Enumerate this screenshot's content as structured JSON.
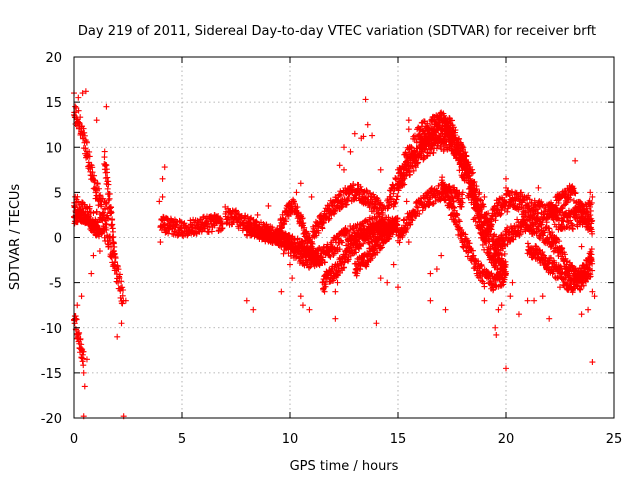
{
  "chart_data": {
    "type": "scatter",
    "title": "Day 219 of 2011, Sidereal Day-to-day VTEC variation (SDTVAR) for receiver brft",
    "xlabel": "GPS time / hours",
    "ylabel": "SDTVAR / TECUs",
    "xlim": [
      0,
      25
    ],
    "ylim": [
      -20,
      20
    ],
    "x_ticks": [
      0,
      5,
      10,
      15,
      20,
      25
    ],
    "y_ticks": [
      -20,
      -15,
      -10,
      -5,
      0,
      5,
      10,
      15,
      20
    ],
    "x_tick_labels": [
      "0",
      "5",
      "10",
      "15",
      "20",
      "25"
    ],
    "y_tick_labels": [
      "-20",
      "-15",
      "-10",
      "-5",
      "0",
      "5",
      "10",
      "15",
      "20"
    ],
    "grid": true,
    "marker": "+",
    "color": "#ff0000",
    "series": [
      {
        "name": "SDTVAR",
        "traces": [
          {
            "x": [
              0.0,
              0.2,
              0.4,
              0.6,
              0.8,
              1.0,
              1.2,
              1.4,
              1.6
            ],
            "y": [
              13.5,
              13.0,
              11.5,
              9.5,
              7.5,
              5.5,
              4.0,
              3.0,
              2.5
            ],
            "spread": 1.2
          },
          {
            "x": [
              0.0,
              0.3,
              0.6,
              0.9,
              1.2,
              1.5,
              1.7,
              1.9,
              2.1,
              2.3
            ],
            "y": [
              4.0,
              3.0,
              2.5,
              2.0,
              1.5,
              0.5,
              -1.0,
              -3.0,
              -5.0,
              -7.0
            ],
            "spread": 1.2
          },
          {
            "x": [
              0.0,
              0.15,
              0.3,
              0.45
            ],
            "y": [
              -8.5,
              -10.5,
              -12.0,
              -13.5
            ],
            "spread": 1.0
          },
          {
            "x": [
              1.4,
              1.55,
              1.7,
              1.8,
              1.9
            ],
            "y": [
              9.0,
              6.0,
              3.0,
              0.0,
              -3.0
            ],
            "spread": 1.0
          },
          {
            "x": [
              0.0,
              0.3,
              0.6,
              0.9,
              1.2
            ],
            "y": [
              2.0,
              2.5,
              2.0,
              1.0,
              0.5
            ],
            "spread": 0.6
          },
          {
            "x": [
              4.0,
              4.5,
              5.0,
              5.5,
              6.0,
              6.5,
              6.9
            ],
            "y": [
              1.5,
              1.2,
              1.0,
              1.2,
              1.4,
              1.6,
              1.6
            ],
            "spread": 0.9
          },
          {
            "x": [
              7.0,
              7.5,
              8.0,
              8.5,
              9.0,
              9.5,
              10.0
            ],
            "y": [
              2.5,
              2.0,
              1.5,
              1.0,
              0.5,
              0.0,
              -1.0
            ],
            "spread": 0.9
          },
          {
            "x": [
              8.0,
              8.5,
              9.0,
              9.5,
              10.0,
              10.5,
              11.0
            ],
            "y": [
              1.0,
              0.5,
              0.3,
              0.0,
              -0.5,
              -1.0,
              -1.5
            ],
            "spread": 0.8
          },
          {
            "x": [
              9.5,
              9.9,
              10.2,
              10.5,
              10.8,
              11.1,
              11.4
            ],
            "y": [
              1.0,
              3.0,
              3.5,
              2.0,
              0.0,
              -2.0,
              -3.0
            ],
            "spread": 0.8
          },
          {
            "x": [
              10.0,
              10.5,
              11.0,
              11.5,
              12.0,
              12.5,
              13.0,
              13.5,
              14.0,
              14.4
            ],
            "y": [
              -1.0,
              -2.0,
              -2.5,
              -2.0,
              -1.0,
              0.0,
              0.5,
              1.0,
              1.5,
              1.5
            ],
            "spread": 1.0
          },
          {
            "x": [
              11.0,
              11.5,
              12.0,
              12.5,
              13.0,
              13.5,
              14.0,
              14.5
            ],
            "y": [
              0.0,
              2.0,
              3.5,
              4.5,
              5.0,
              4.5,
              3.5,
              2.0
            ],
            "spread": 1.0
          },
          {
            "x": [
              11.5,
              12.0,
              12.5,
              13.0,
              13.5,
              14.0,
              14.5,
              15.0
            ],
            "y": [
              -5.0,
              -4.0,
              -2.5,
              -1.0,
              0.0,
              0.5,
              1.0,
              1.5
            ],
            "spread": 0.9
          },
          {
            "x": [
              13.0,
              13.5,
              14.0,
              14.5,
              15.0
            ],
            "y": [
              -3.5,
              -2.5,
              -1.0,
              0.5,
              2.0
            ],
            "spread": 0.9
          },
          {
            "x": [
              14.5,
              15.0,
              15.5,
              16.0,
              16.5,
              17.0,
              17.5,
              18.0,
              18.5,
              19.0
            ],
            "y": [
              3.0,
              6.0,
              9.0,
              11.0,
              12.0,
              12.0,
              11.0,
              8.0,
              4.0,
              0.0
            ],
            "spread": 1.5
          },
          {
            "x": [
              15.0,
              15.5,
              16.0,
              16.5,
              17.0,
              17.5,
              18.0,
              18.5,
              19.0,
              19.5,
              20.0
            ],
            "y": [
              6.0,
              8.0,
              9.5,
              10.5,
              11.0,
              10.5,
              9.0,
              6.0,
              2.0,
              -1.0,
              -3.0
            ],
            "spread": 1.3
          },
          {
            "x": [
              16.0,
              16.5,
              17.0,
              17.5,
              18.0,
              18.5,
              19.0,
              19.5,
              20.0
            ],
            "y": [
              10.0,
              12.0,
              13.0,
              12.0,
              9.0,
              5.0,
              0.0,
              -3.0,
              -4.0
            ],
            "spread": 1.0
          },
          {
            "x": [
              17.0,
              17.5,
              18.0,
              18.5,
              19.0,
              19.5,
              20.0
            ],
            "y": [
              6.0,
              3.0,
              0.0,
              -2.5,
              -4.5,
              -5.0,
              -4.0
            ],
            "spread": 1.0
          },
          {
            "x": [
              15.0,
              15.5,
              16.0,
              16.5,
              17.0,
              17.5,
              18.0
            ],
            "y": [
              0.0,
              2.0,
              3.5,
              4.5,
              5.0,
              5.0,
              4.0
            ],
            "spread": 0.9
          },
          {
            "x": [
              19.0,
              19.5,
              20.0,
              20.5,
              21.0,
              21.5,
              22.0,
              22.5,
              23.0,
              23.5,
              24.0
            ],
            "y": [
              1.0,
              3.0,
              4.0,
              4.0,
              3.5,
              3.0,
              2.5,
              2.0,
              2.0,
              2.5,
              3.0
            ],
            "spread": 1.2
          },
          {
            "x": [
              19.5,
              20.0,
              20.5,
              21.0,
              21.5,
              22.0,
              22.5,
              23.0,
              23.5,
              24.0
            ],
            "y": [
              -1.0,
              0.0,
              1.0,
              1.5,
              1.0,
              0.0,
              -1.5,
              -4.0,
              -5.0,
              -3.0
            ],
            "spread": 1.0
          },
          {
            "x": [
              21.0,
              21.5,
              22.0,
              22.5,
              23.0,
              23.5,
              24.0
            ],
            "y": [
              -1.0,
              -2.0,
              -3.0,
              -4.0,
              -5.5,
              -4.0,
              -2.0
            ],
            "spread": 0.9
          },
          {
            "x": [
              22.0,
              22.5,
              23.0,
              23.5,
              24.0
            ],
            "y": [
              3.0,
              4.0,
              5.0,
              3.0,
              1.0
            ],
            "spread": 1.0
          }
        ],
        "points": [
          [
            0.0,
            16.0
          ],
          [
            0.4,
            16.0
          ],
          [
            0.55,
            16.2
          ],
          [
            0.2,
            15.5
          ],
          [
            1.05,
            13.0
          ],
          [
            1.5,
            14.5
          ],
          [
            0.6,
            10.5
          ],
          [
            0.35,
            -6.5
          ],
          [
            0.45,
            -19.8
          ],
          [
            2.3,
            -19.8
          ],
          [
            0.5,
            -16.5
          ],
          [
            0.45,
            -15.0
          ],
          [
            0.6,
            -13.5
          ],
          [
            0.15,
            -7.5
          ],
          [
            2.0,
            -11.0
          ],
          [
            2.2,
            -9.5
          ],
          [
            2.4,
            -7.0
          ],
          [
            0.9,
            -2.0
          ],
          [
            1.2,
            -1.5
          ],
          [
            0.8,
            -4.0
          ],
          [
            4.1,
            6.5
          ],
          [
            4.2,
            7.8
          ],
          [
            3.95,
            4.0
          ],
          [
            4.1,
            4.5
          ],
          [
            4.0,
            -0.5
          ],
          [
            8.0,
            -7.0
          ],
          [
            8.3,
            -8.0
          ],
          [
            10.5,
            6.0
          ],
          [
            10.3,
            5.0
          ],
          [
            9.7,
            -1.8
          ],
          [
            9.6,
            -6.0
          ],
          [
            10.1,
            -4.5
          ],
          [
            10.6,
            -7.5
          ],
          [
            10.9,
            -8.0
          ],
          [
            10.5,
            -6.5
          ],
          [
            11.6,
            -6.0
          ],
          [
            12.1,
            -6.0
          ],
          [
            12.1,
            -9.0
          ],
          [
            12.2,
            -5.0
          ],
          [
            14.0,
            -9.5
          ],
          [
            13.3,
            11.0
          ],
          [
            13.4,
            11.2
          ],
          [
            13.5,
            15.3
          ],
          [
            13.6,
            12.5
          ],
          [
            13.0,
            11.5
          ],
          [
            12.5,
            10.0
          ],
          [
            12.3,
            8.0
          ],
          [
            12.8,
            9.5
          ],
          [
            13.8,
            11.3
          ],
          [
            14.2,
            7.5
          ],
          [
            14.8,
            -3.0
          ],
          [
            14.5,
            -5.0
          ],
          [
            15.0,
            -5.5
          ],
          [
            14.2,
            -4.5
          ],
          [
            15.5,
            -0.5
          ],
          [
            16.5,
            -7.0
          ],
          [
            16.5,
            -4.0
          ],
          [
            17.0,
            -2.0
          ],
          [
            17.2,
            -8.0
          ],
          [
            16.8,
            -3.5
          ],
          [
            19.0,
            -7.0
          ],
          [
            19.5,
            -10.0
          ],
          [
            19.55,
            -10.8
          ],
          [
            19.65,
            -8.0
          ],
          [
            19.8,
            -7.5
          ],
          [
            20.0,
            -14.5
          ],
          [
            20.2,
            -6.5
          ],
          [
            20.0,
            -4.0
          ],
          [
            20.3,
            -5.0
          ],
          [
            20.6,
            -8.5
          ],
          [
            21.0,
            -7.0
          ],
          [
            21.3,
            -7.0
          ],
          [
            21.7,
            -6.5
          ],
          [
            22.0,
            -9.0
          ],
          [
            22.5,
            -5.5
          ],
          [
            23.2,
            8.5
          ],
          [
            23.5,
            -8.5
          ],
          [
            23.8,
            -8.0
          ],
          [
            24.0,
            -13.8
          ],
          [
            24.0,
            -6.0
          ],
          [
            24.1,
            -6.5
          ],
          [
            23.9,
            5.0
          ],
          [
            24.0,
            4.5
          ],
          [
            23.7,
            -4.0
          ],
          [
            20.0,
            6.5
          ],
          [
            20.0,
            5.5
          ],
          [
            19.8,
            3.5
          ],
          [
            15.5,
            12.0
          ],
          [
            15.5,
            13.0
          ],
          [
            17.0,
            11.5
          ],
          [
            15.0,
            7.5
          ],
          [
            15.0,
            6.0
          ],
          [
            15.4,
            4.0
          ],
          [
            14.8,
            4.0
          ],
          [
            14.0,
            1.0
          ],
          [
            6.5,
            2.5
          ],
          [
            7.5,
            3.0
          ],
          [
            9.0,
            3.5
          ],
          [
            8.5,
            2.5
          ],
          [
            12.5,
            7.5
          ],
          [
            11.0,
            4.5
          ],
          [
            10.0,
            -3.0
          ],
          [
            18.0,
            5.0
          ],
          [
            18.5,
            2.0
          ],
          [
            18.0,
            -1.0
          ],
          [
            19.0,
            4.5
          ],
          [
            21.5,
            5.5
          ],
          [
            22.0,
            1.0
          ],
          [
            23.5,
            -1.0
          ],
          [
            22.8,
            -3.0
          ]
        ]
      }
    ]
  }
}
